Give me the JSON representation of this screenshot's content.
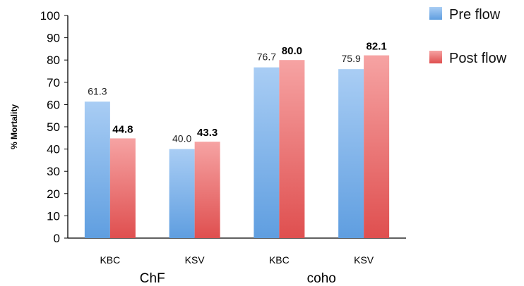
{
  "chart_data": {
    "type": "bar",
    "ylabel": "% Mortality",
    "ylim": [
      0,
      100
    ],
    "yticks": [
      "0",
      "10",
      "20",
      "30",
      "40",
      "50",
      "60",
      "70",
      "80",
      "90",
      "100"
    ],
    "groups": [
      "ChF",
      "coho"
    ],
    "categories": [
      "KBC",
      "KSV",
      "KBC",
      "KSV"
    ],
    "category_group": [
      0,
      0,
      1,
      1
    ],
    "series": [
      {
        "name": "Pre flow",
        "values": [
          61.3,
          40.0,
          76.7,
          75.9
        ],
        "labels": [
          "61.3",
          "40.0",
          "76.7",
          "75.9"
        ],
        "color": "#7fb2ea"
      },
      {
        "name": "Post flow",
        "values": [
          44.8,
          43.3,
          80.0,
          82.1
        ],
        "labels": [
          "44.8",
          "43.3",
          "80.0",
          "82.1"
        ],
        "color": "#e86a6a"
      }
    ],
    "legend_position": "top-right",
    "grid": false
  }
}
